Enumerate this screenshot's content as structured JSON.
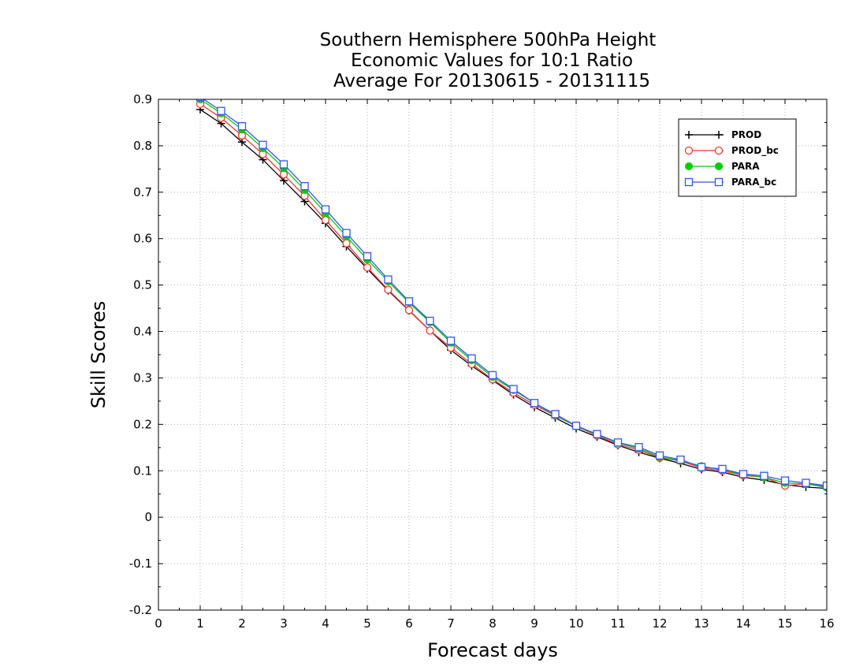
{
  "chart_data": {
    "type": "line",
    "title": [
      "Southern Hemisphere 500hPa Height",
      "Economic Values for 10:1 Ratio",
      "Average For 20130615 - 20131115"
    ],
    "xlabel": "Forecast days",
    "ylabel": "Skill Scores",
    "xlim": [
      0,
      16
    ],
    "ylim": [
      -0.2,
      0.9
    ],
    "xticks": [
      "0",
      "1",
      "2",
      "3",
      "4",
      "5",
      "6",
      "7",
      "8",
      "9",
      "10",
      "11",
      "12",
      "13",
      "14",
      "15",
      "16"
    ],
    "yticks": [
      "-0.2",
      "-0.1",
      "0",
      "0.1",
      "0.2",
      "0.3",
      "0.4",
      "0.5",
      "0.6",
      "0.7",
      "0.8",
      "0.9"
    ],
    "grid": true,
    "legend_position": "top-right",
    "x": [
      1,
      1.5,
      2,
      2.5,
      3,
      3.5,
      4,
      4.5,
      5,
      5.5,
      6,
      6.5,
      7,
      7.5,
      8,
      8.5,
      9,
      9.5,
      10,
      10.5,
      11,
      11.5,
      12,
      12.5,
      13,
      13.5,
      14,
      14.5,
      15,
      15.5,
      16
    ],
    "series": [
      {
        "name": "PROD",
        "color": "#000000",
        "marker": "plus",
        "values": [
          0.878,
          0.848,
          0.808,
          0.77,
          0.725,
          0.68,
          0.633,
          0.583,
          0.535,
          0.488,
          0.445,
          0.402,
          0.36,
          0.326,
          0.295,
          0.264,
          0.237,
          0.214,
          0.191,
          0.173,
          0.155,
          0.14,
          0.127,
          0.116,
          0.103,
          0.097,
          0.086,
          0.08,
          0.07,
          0.065,
          0.062
        ]
      },
      {
        "name": "PROD_bc",
        "color": "#ff3333",
        "marker": "circle",
        "values": [
          0.89,
          0.86,
          0.822,
          0.782,
          0.738,
          0.692,
          0.64,
          0.59,
          0.538,
          0.49,
          0.446,
          0.402,
          0.365,
          0.33,
          0.297,
          0.268,
          0.242,
          0.219,
          0.196,
          0.176,
          0.157,
          0.145,
          0.128,
          0.121,
          0.106,
          0.1,
          0.09,
          0.086,
          0.068,
          0.072,
          0.066
        ]
      },
      {
        "name": "PARA",
        "color": "#00cc00",
        "marker": "dot",
        "values": [
          0.9,
          0.87,
          0.835,
          0.795,
          0.752,
          0.705,
          0.655,
          0.605,
          0.555,
          0.508,
          0.462,
          0.42,
          0.376,
          0.338,
          0.302,
          0.274,
          0.246,
          0.22,
          0.196,
          0.178,
          0.16,
          0.148,
          0.13,
          0.122,
          0.11,
          0.102,
          0.092,
          0.086,
          0.074,
          0.072,
          0.064
        ]
      },
      {
        "name": "PARA_bc",
        "color": "#3355ff",
        "marker": "square",
        "values": [
          0.905,
          0.875,
          0.842,
          0.802,
          0.76,
          0.713,
          0.663,
          0.612,
          0.562,
          0.512,
          0.465,
          0.423,
          0.38,
          0.342,
          0.306,
          0.276,
          0.246,
          0.222,
          0.197,
          0.179,
          0.161,
          0.151,
          0.133,
          0.124,
          0.108,
          0.104,
          0.093,
          0.089,
          0.079,
          0.074,
          0.068
        ]
      }
    ]
  }
}
